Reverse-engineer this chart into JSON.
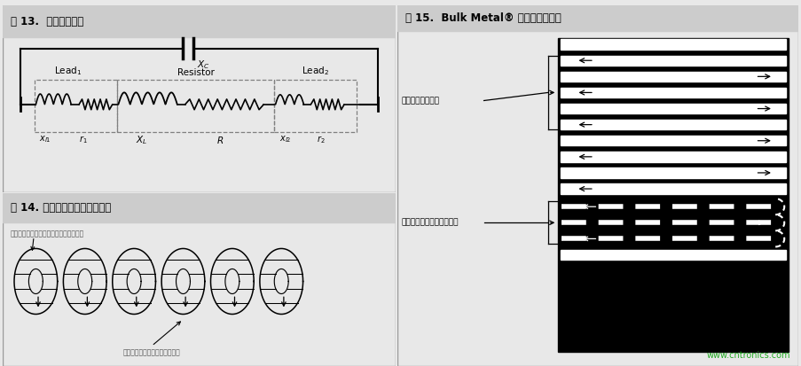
{
  "fig_width": 9.04,
  "fig_height": 4.13,
  "bg_color": "#e8e8e8",
  "panel_bg": "#ffffff",
  "header_bg": "#cccccc",
  "border_color": "#888888",
  "text_color": "#222222",
  "green_color": "#22aa22",
  "fig13_title": "图 13.  电阻等效电路",
  "fig14_title": "图 14. 线绕电阻中的电容和电感",
  "fig15_title": "图 15.  Bulk Metal® 箔电阻平面设计",
  "fig14_label1": "内部环形电容随着环数螺旋的增加而增加",
  "fig14_label2": "绕过环的电流方向相同增加电感",
  "fig15_label1": "连续减少极间电容",
  "fig15_label2": "通过改变电流方向减少电感",
  "website": "www.cntronics.com"
}
